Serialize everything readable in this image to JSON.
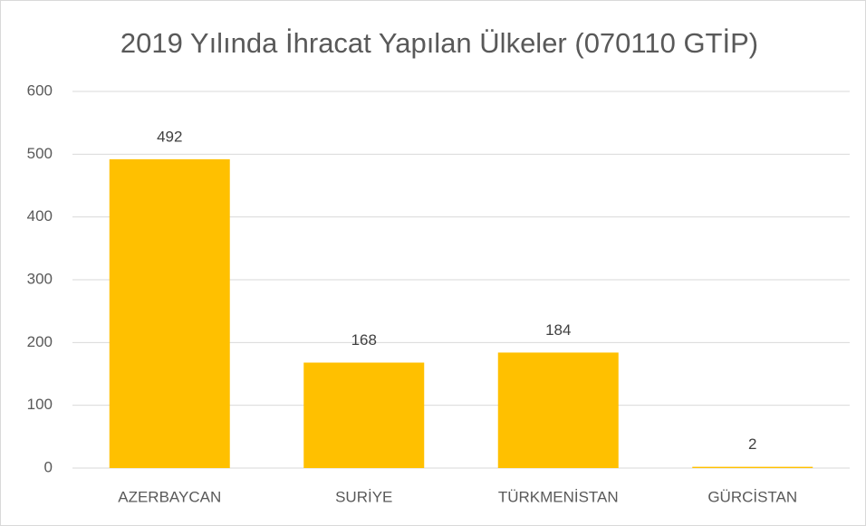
{
  "chart_data": {
    "type": "bar",
    "title": "2019 Yılında İhracat Yapılan Ülkeler (070110 GTİP)",
    "categories": [
      "AZERBAYCAN",
      "SURİYE",
      "TÜRKMENİSTAN",
      "GÜRCİSTAN"
    ],
    "values": [
      492,
      168,
      184,
      2
    ],
    "color": "#ffc000",
    "ylim": [
      0,
      600
    ],
    "yticks": [
      0,
      100,
      200,
      300,
      400,
      500,
      600
    ],
    "grid": true,
    "data_labels": true
  }
}
